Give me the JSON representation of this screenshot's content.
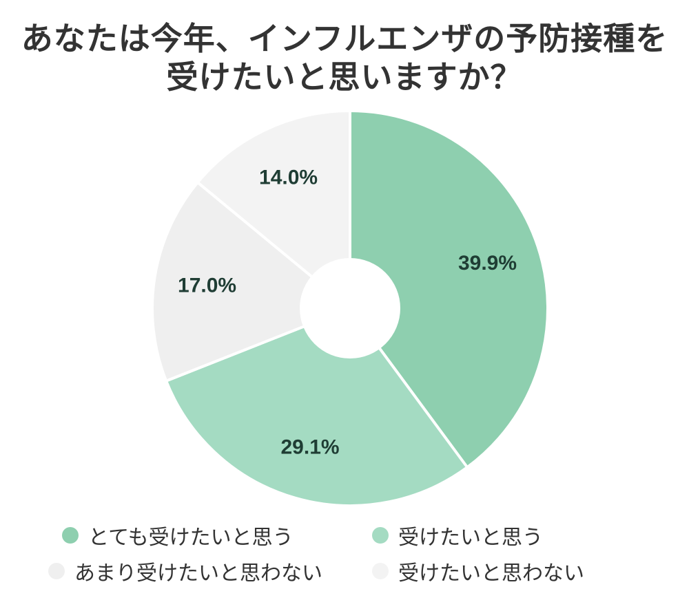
{
  "chart_data": {
    "type": "pie",
    "title_lines": [
      "あなたは今年、インフルエンザの予防接種を",
      "受けたいと思いますか？"
    ],
    "slices": [
      {
        "name": "とても受けたいと思う",
        "value": 39.9,
        "label": "39.9%",
        "color": "#8ecfaf"
      },
      {
        "name": "受けたいと思う",
        "value": 29.1,
        "label": "29.1%",
        "color": "#a4dbc2"
      },
      {
        "name": "あまり受けたいと思わない",
        "value": 17.0,
        "label": "17.0%",
        "color": "#efefef"
      },
      {
        "name": "受けたいと思わない",
        "value": 14.0,
        "label": "14.0%",
        "color": "#f3f3f3"
      }
    ],
    "start_angle_deg": 0,
    "direction": "clockwise",
    "donut": true,
    "legend_position": "bottom"
  },
  "colors": {
    "title": "#333333",
    "label": "#1f3d34",
    "separator": "#ffffff"
  }
}
